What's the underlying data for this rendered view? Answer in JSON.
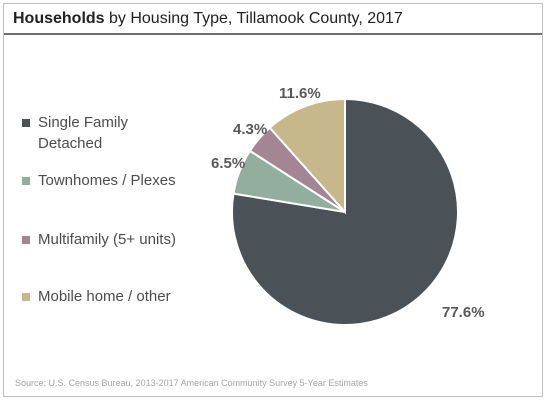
{
  "chart_data": {
    "type": "pie",
    "title_bold": "Households",
    "title_rest": " by Housing Type, Tillamook County, 2017",
    "categories": [
      "Single Family Detached",
      "Townhomes / Plexes",
      "Multifamily (5+ units)",
      "Mobile home / other"
    ],
    "values": [
      77.6,
      6.5,
      4.3,
      11.6
    ],
    "data_labels": [
      "77.6%",
      "6.5%",
      "4.3%",
      "11.6%"
    ],
    "colors": [
      "#4a5258",
      "#93ae9e",
      "#a48593",
      "#c7b88b"
    ],
    "legend": {
      "placement": "left",
      "items": [
        {
          "label": "Single Family Detached",
          "color": "#4a5258"
        },
        {
          "label": "Townhomes / Plexes",
          "color": "#93ae9e"
        },
        {
          "label": "Multifamily (5+ units)",
          "color": "#a48593"
        },
        {
          "label": "Mobile home / other",
          "color": "#c7b88b"
        }
      ]
    },
    "start": "12 o'clock",
    "direction": "clockwise"
  },
  "source": "Source: U.S. Census Bureau, 2013-2017 American Community Survey 5-Year Estimates"
}
